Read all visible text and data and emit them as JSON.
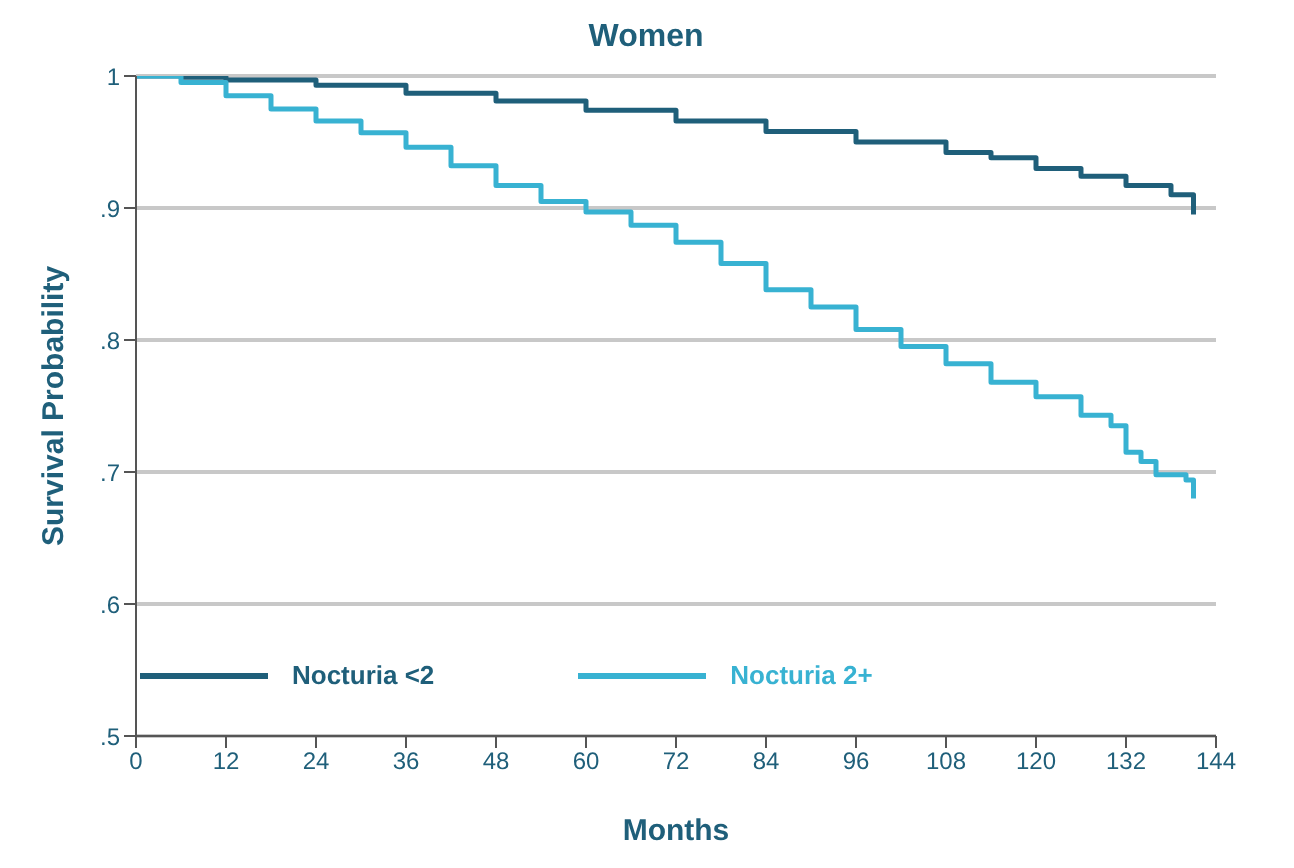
{
  "chart_data": {
    "type": "step",
    "title": "Women",
    "xlabel": "Months",
    "ylabel": "Survival Probability",
    "series": [
      {
        "name": "Nocturia <2",
        "color": "#1f5f7a",
        "x": [
          0,
          6,
          12,
          24,
          36,
          48,
          60,
          72,
          84,
          96,
          108,
          114,
          120,
          126,
          132,
          138,
          141,
          141
        ],
        "values": [
          1,
          0.999,
          0.997,
          0.993,
          0.987,
          0.981,
          0.974,
          0.966,
          0.958,
          0.95,
          0.942,
          0.938,
          0.93,
          0.924,
          0.917,
          0.91,
          0.905,
          0.895
        ]
      },
      {
        "name": "Nocturia 2+",
        "color": "#38b2d2",
        "x": [
          0,
          6,
          12,
          18,
          24,
          30,
          36,
          42,
          48,
          54,
          60,
          66,
          72,
          78,
          84,
          90,
          96,
          102,
          108,
          114,
          120,
          126,
          130,
          132,
          134,
          136,
          138,
          140,
          141,
          141
        ],
        "values": [
          1,
          0.995,
          0.985,
          0.975,
          0.966,
          0.957,
          0.946,
          0.932,
          0.917,
          0.905,
          0.897,
          0.887,
          0.874,
          0.858,
          0.838,
          0.825,
          0.808,
          0.795,
          0.782,
          0.768,
          0.757,
          0.743,
          0.735,
          0.715,
          0.708,
          0.698,
          0.698,
          0.694,
          0.688,
          0.68
        ]
      }
    ],
    "xlim": [
      0,
      144
    ],
    "xticks": [
      0,
      12,
      24,
      36,
      48,
      60,
      72,
      84,
      96,
      108,
      120,
      132,
      144
    ],
    "ylim": [
      0.5,
      1
    ],
    "yticks": [
      {
        "value": 0.5,
        "label": ".5"
      },
      {
        "value": 0.6,
        "label": ".6"
      },
      {
        "value": 0.7,
        "label": ".7"
      },
      {
        "value": 0.8,
        "label": ".8"
      },
      {
        "value": 0.9,
        "label": ".9"
      },
      {
        "value": 1,
        "label": "1"
      }
    ],
    "grid": "y",
    "legend": "bottom left"
  }
}
